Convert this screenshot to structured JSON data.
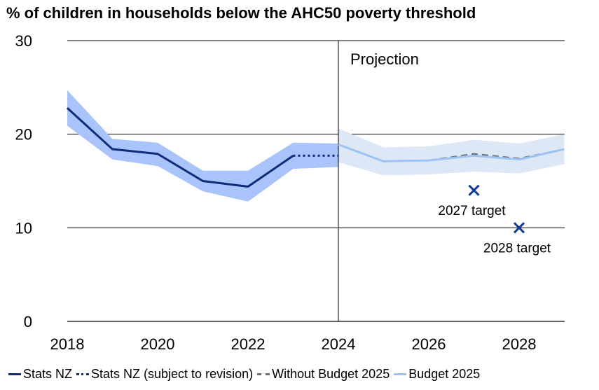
{
  "chart_data": {
    "type": "line",
    "title": "% of children in households below the AHC50 poverty threshold",
    "xlabel": "",
    "ylabel": "",
    "xlim": [
      2018,
      2029
    ],
    "ylim": [
      0,
      30
    ],
    "x_ticks": [
      2018,
      2020,
      2022,
      2024,
      2026,
      2028
    ],
    "y_ticks": [
      0,
      10,
      20,
      30
    ],
    "grid": "horizontal",
    "divider_x": 2024,
    "projection_label": "Projection",
    "colors": {
      "stats_nz": "#0f2c7a",
      "stats_band": "#a9c4fb",
      "budget": "#9cc3f2",
      "budget_band": "#dde8f6",
      "without": "#6f6f6f",
      "target_marker": "#0f3a9c",
      "grid": "#000000"
    },
    "series": [
      {
        "name": "Stats NZ",
        "style": "solid",
        "x": [
          2018,
          2019,
          2020,
          2021,
          2022,
          2023
        ],
        "values": [
          22.8,
          18.4,
          17.9,
          15.0,
          14.4,
          17.7
        ]
      },
      {
        "name": "Stats NZ (subject to revision)",
        "style": "dotted",
        "x": [
          2023,
          2024
        ],
        "values": [
          17.7,
          17.7
        ]
      },
      {
        "name": "Without Budget 2025",
        "style": "dashed",
        "x": [
          2024,
          2025,
          2026,
          2027,
          2028,
          2029
        ],
        "values": [
          18.9,
          17.1,
          17.2,
          17.9,
          17.4,
          18.4
        ]
      },
      {
        "name": "Budget 2025",
        "style": "solid",
        "x": [
          2024,
          2025,
          2026,
          2027,
          2028,
          2029
        ],
        "values": [
          18.9,
          17.1,
          17.2,
          17.7,
          17.3,
          18.4
        ]
      }
    ],
    "bands": [
      {
        "name": "Stats NZ uncertainty",
        "x": [
          2018,
          2019,
          2020,
          2021,
          2022,
          2023,
          2024
        ],
        "lower": [
          20.9,
          17.3,
          16.6,
          13.9,
          12.8,
          16.3,
          16.5
        ],
        "upper": [
          24.7,
          19.5,
          19.1,
          16.1,
          16.1,
          19.1,
          19.0
        ]
      },
      {
        "name": "Budget 2025 uncertainty",
        "x": [
          2024,
          2025,
          2026,
          2027,
          2028,
          2029
        ],
        "lower": [
          17.0,
          15.6,
          15.7,
          16.0,
          15.8,
          16.8
        ],
        "upper": [
          20.6,
          18.6,
          18.7,
          19.4,
          19.0,
          20.0
        ]
      }
    ],
    "targets": [
      {
        "label": "2027 target",
        "x": 2027,
        "value": 14
      },
      {
        "label": "2028 target",
        "x": 2028,
        "value": 10
      }
    ]
  }
}
